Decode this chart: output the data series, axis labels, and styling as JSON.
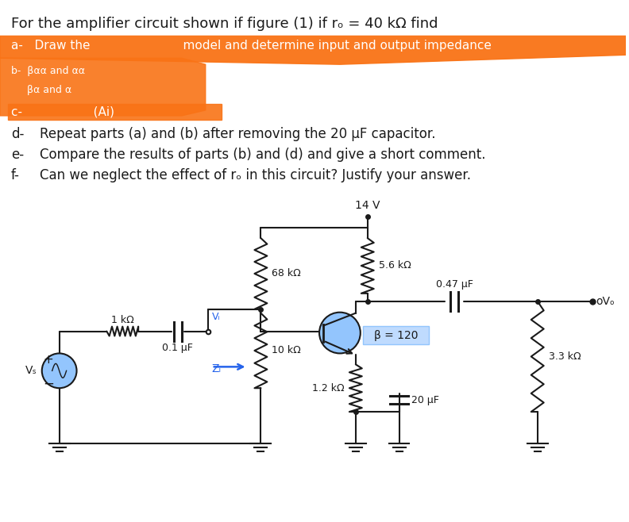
{
  "title": "For the amplifier circuit shown if figure (1) if rₒ = 40 kΩ find",
  "highlight_color": "#f97316",
  "transistor_fill": "#93c5fd",
  "beta_box_fill": "#bfdbfe",
  "vs_fill": "#93c5fd",
  "zi_arrow_color": "#2563eb",
  "vi_color": "#2563eb",
  "bg_color": "#ffffff",
  "text_color": "#1a1a1a",
  "line_color": "#1a1a1a",
  "r1_label": "68 kΩ",
  "r2_label": "5.6 kΩ",
  "r3_label": "10 kΩ",
  "r4_label": "1.2 kΩ",
  "r5_label": "3.3 kΩ",
  "rin_label": "1 kΩ",
  "c1_label": "0.1 μF",
  "c2_label": "0.47 μF",
  "c3_label": "20 μF",
  "vcc_label": "14 V",
  "beta_label": "β = 120",
  "vs_label": "Vₛ",
  "vi_label": "Vᵢ",
  "zi_label": "Zᵢ",
  "vo_label": "oVₒ",
  "d_text": "Repeat parts (a) and (b) after removing the 20 μF capacitor.",
  "e_text": "Compare the results of parts (b) and (d) and give a short comment.",
  "f_text": "Can we neglect the effect of rₒ in this circuit? Justify your answer."
}
